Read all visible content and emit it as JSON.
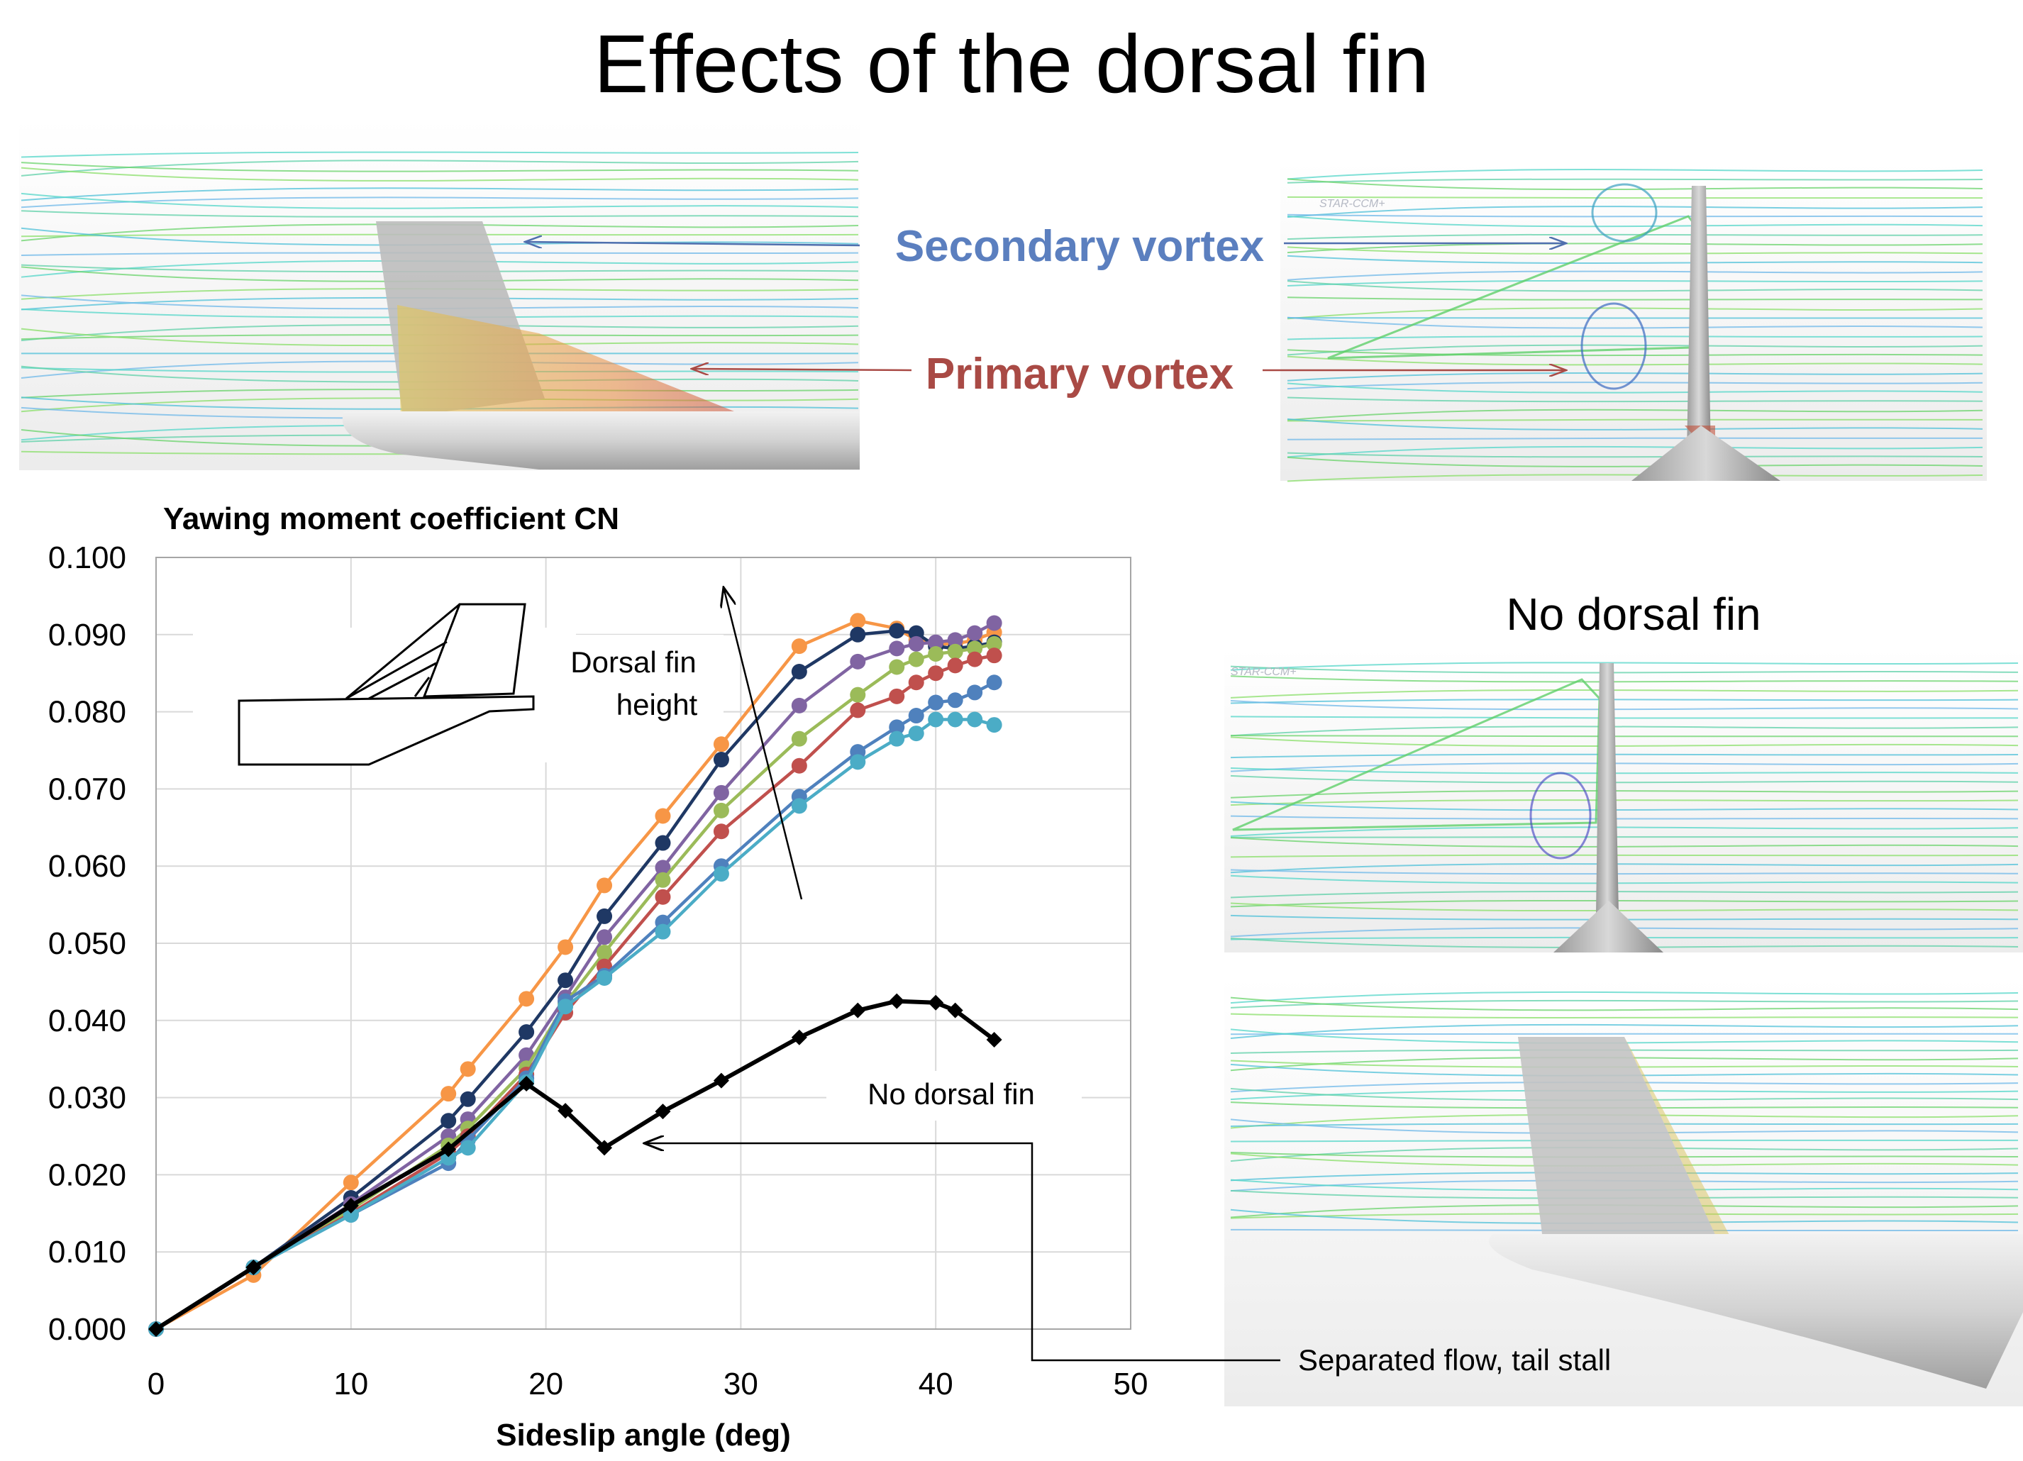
{
  "slide": {
    "title": "Effects of the dorsal fin",
    "secondary_vortex_label": "Secondary vortex",
    "primary_vortex_label": "Primary vortex",
    "no_dorsal_fin_heading": "No dorsal fin",
    "separated_flow_label": "Separated flow, tail stall",
    "dorsal_fin_height_label_line1": "Dorsal fin",
    "dorsal_fin_height_label_line2": "height",
    "no_dorsal_fin_curve_label": "No dorsal fin",
    "software_watermark": "STAR-CCM+"
  },
  "colors": {
    "secondary_vortex": "#5b7fbf",
    "primary_vortex": "#a94a45",
    "streamline_cyan": "#53d6c8",
    "streamline_green": "#69d36b"
  },
  "chart_data": {
    "type": "line",
    "title": "Yawing moment coefficient CN",
    "xlabel": "Sideslip angle (deg)",
    "ylabel": "",
    "xlim": [
      0,
      50
    ],
    "ylim": [
      0,
      0.1
    ],
    "xticks": [
      "0",
      "10",
      "20",
      "30",
      "40",
      "50"
    ],
    "yticks": [
      "0.000",
      "0.010",
      "0.020",
      "0.030",
      "0.040",
      "0.050",
      "0.060",
      "0.070",
      "0.080",
      "0.090",
      "0.100"
    ],
    "grid": true,
    "series": [
      {
        "color": "#f79646",
        "marker": "circle",
        "x": [
          0,
          5,
          10,
          15,
          16,
          19,
          21,
          23,
          26,
          29,
          33,
          36,
          38,
          39,
          40,
          41,
          42,
          43
        ],
        "y": [
          0.0,
          0.007,
          0.019,
          0.0305,
          0.0337,
          0.0428,
          0.0495,
          0.0575,
          0.0665,
          0.0758,
          0.0885,
          0.0918,
          0.0908,
          0.0893,
          0.0888,
          0.0888,
          0.0893,
          0.0903
        ]
      },
      {
        "color": "#1f3864",
        "marker": "circle",
        "x": [
          0,
          5,
          10,
          15,
          16,
          19,
          21,
          23,
          26,
          29,
          33,
          36,
          38,
          39,
          40,
          41,
          42,
          43
        ],
        "y": [
          0.0,
          0.008,
          0.017,
          0.027,
          0.0298,
          0.0385,
          0.0452,
          0.0535,
          0.063,
          0.0738,
          0.0852,
          0.09,
          0.0905,
          0.0902,
          0.0885,
          0.0882,
          0.0885,
          0.089
        ]
      },
      {
        "color": "#8064a2",
        "marker": "circle",
        "x": [
          0,
          5,
          10,
          15,
          16,
          19,
          21,
          23,
          26,
          29,
          33,
          36,
          38,
          39,
          40,
          41,
          42,
          43
        ],
        "y": [
          0.0,
          0.008,
          0.0162,
          0.025,
          0.0272,
          0.0355,
          0.043,
          0.0508,
          0.0598,
          0.0695,
          0.0808,
          0.0865,
          0.0882,
          0.0888,
          0.089,
          0.0893,
          0.0902,
          0.0915
        ]
      },
      {
        "color": "#9bbb59",
        "marker": "circle",
        "x": [
          0,
          5,
          10,
          15,
          16,
          19,
          21,
          23,
          26,
          29,
          33,
          36,
          38,
          39,
          40,
          41,
          42,
          43
        ],
        "y": [
          0.0,
          0.008,
          0.0155,
          0.0238,
          0.026,
          0.0338,
          0.0422,
          0.0488,
          0.0582,
          0.0672,
          0.0765,
          0.0822,
          0.0858,
          0.0868,
          0.0875,
          0.0878,
          0.0882,
          0.0888
        ]
      },
      {
        "color": "#c0504d",
        "marker": "circle",
        "x": [
          0,
          5,
          10,
          15,
          16,
          19,
          21,
          23,
          26,
          29,
          33,
          36,
          38,
          39,
          40,
          41,
          42,
          43
        ],
        "y": [
          0.0,
          0.008,
          0.015,
          0.0228,
          0.025,
          0.033,
          0.041,
          0.047,
          0.056,
          0.0645,
          0.073,
          0.0802,
          0.082,
          0.0838,
          0.085,
          0.086,
          0.0868,
          0.0873
        ]
      },
      {
        "color": "#4f81bd",
        "marker": "circle",
        "x": [
          0,
          5,
          10,
          15,
          16,
          19,
          21,
          23,
          26,
          29,
          33,
          36,
          38,
          39,
          40,
          41,
          42,
          43
        ],
        "y": [
          0.0,
          0.008,
          0.0148,
          0.0215,
          0.0245,
          0.0325,
          0.0425,
          0.0458,
          0.0527,
          0.06,
          0.069,
          0.0748,
          0.078,
          0.0795,
          0.0812,
          0.0815,
          0.0825,
          0.0838
        ]
      },
      {
        "color": "#4bacc6",
        "marker": "circle",
        "x": [
          0,
          5,
          10,
          15,
          16,
          19,
          21,
          23,
          26,
          29,
          33,
          36,
          38,
          39,
          40,
          41,
          42,
          43
        ],
        "y": [
          0.0,
          0.008,
          0.0148,
          0.0222,
          0.0235,
          0.032,
          0.0418,
          0.0455,
          0.0515,
          0.059,
          0.0678,
          0.0735,
          0.0765,
          0.0772,
          0.079,
          0.079,
          0.079,
          0.0783
        ]
      },
      {
        "color": "#000000",
        "marker": "diamond",
        "thick": true,
        "x": [
          0,
          5,
          10,
          15,
          19,
          21,
          23,
          26,
          29,
          33,
          36,
          38,
          40,
          41,
          43
        ],
        "y": [
          0.0,
          0.008,
          0.016,
          0.0233,
          0.0318,
          0.0283,
          0.0235,
          0.0282,
          0.0322,
          0.0378,
          0.0413,
          0.0425,
          0.0423,
          0.0413,
          0.0375
        ]
      }
    ]
  }
}
